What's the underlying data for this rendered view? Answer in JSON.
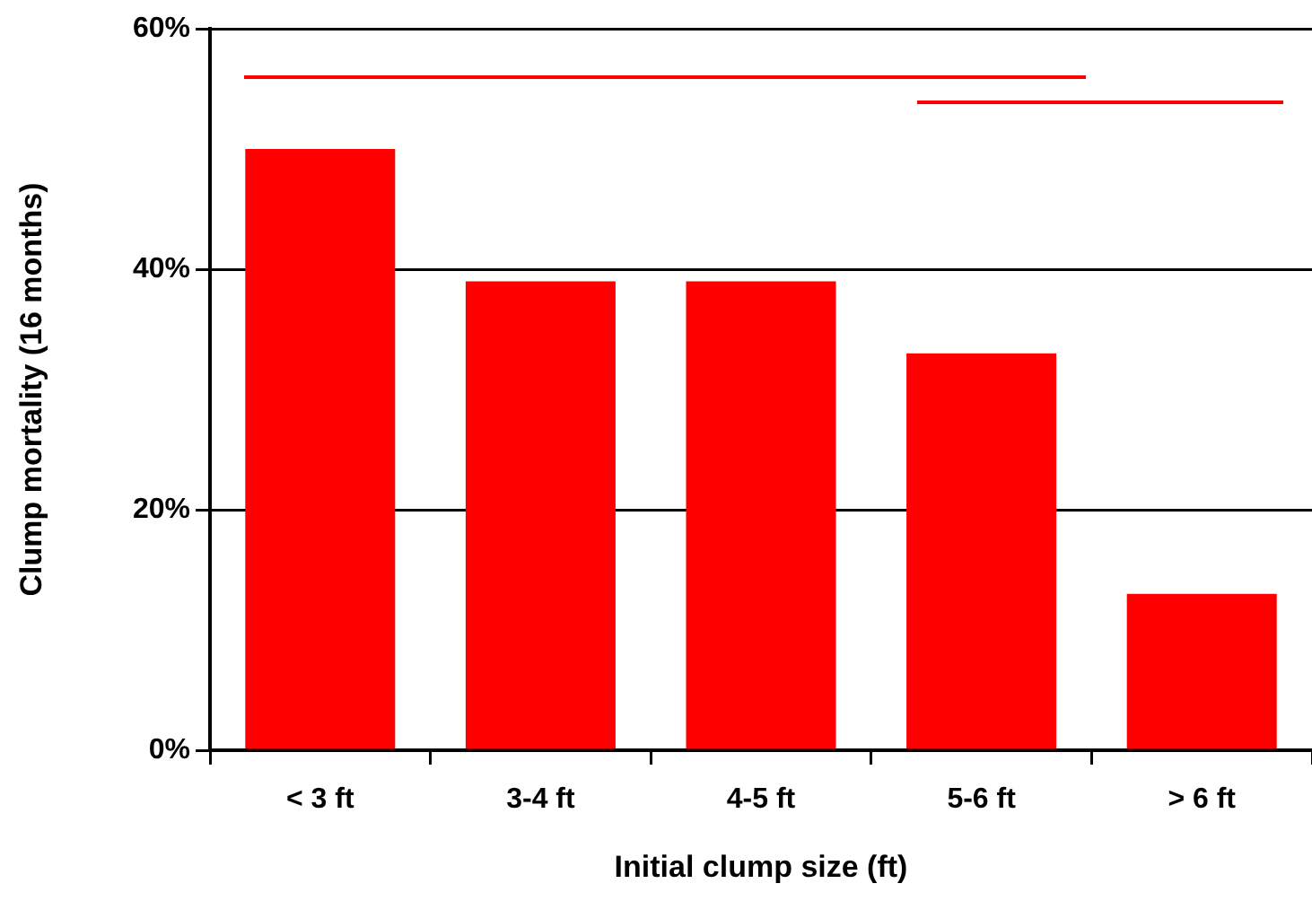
{
  "chart_data": {
    "type": "bar",
    "xlabel": "Initial clump size (ft)",
    "ylabel": "Clump mortality (16 months)",
    "categories": [
      "< 3 ft",
      "3-4 ft",
      "4-5 ft",
      "5-6 ft",
      "> 6 ft"
    ],
    "series": [
      {
        "color": "#ff0000",
        "values": [
          50,
          39,
          39,
          33,
          13
        ]
      }
    ],
    "ylim": [
      0,
      60
    ],
    "yticks": [
      {
        "value": 0,
        "label": "0%"
      },
      {
        "value": 20,
        "label": "20%"
      },
      {
        "value": 40,
        "label": "40%"
      },
      {
        "value": 60,
        "label": "60%"
      }
    ],
    "grid": "y",
    "legend": false
  }
}
